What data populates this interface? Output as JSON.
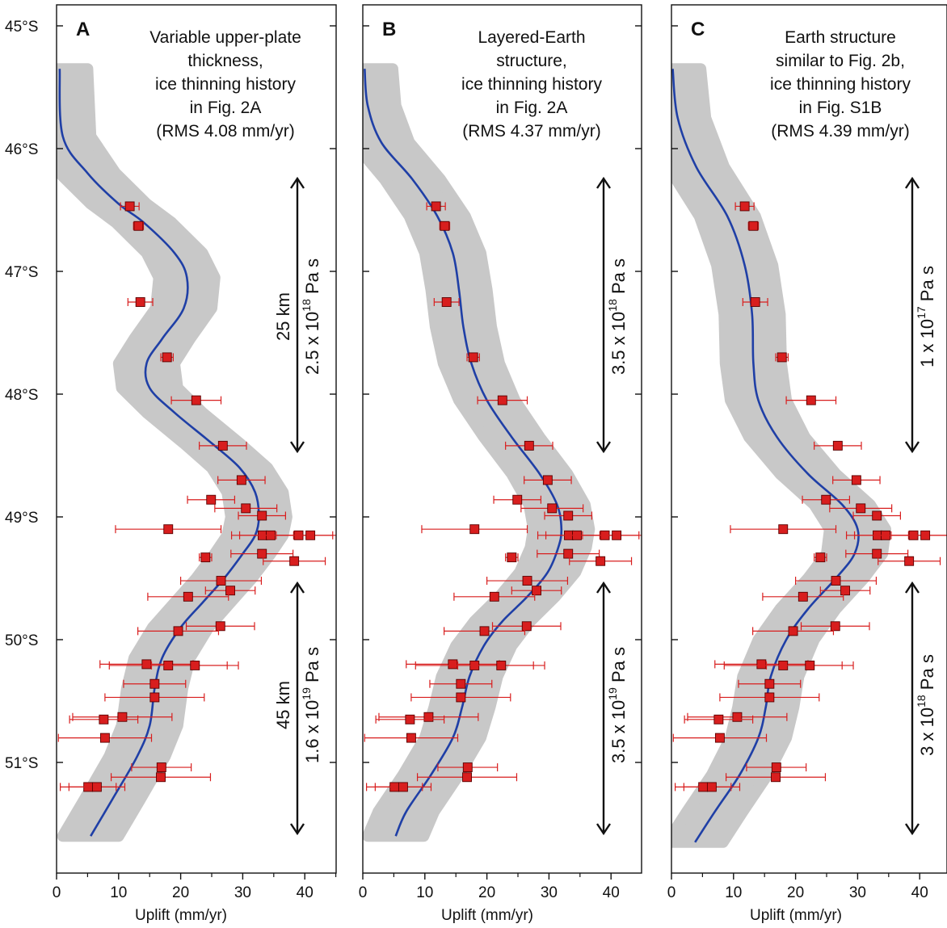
{
  "chart_data": [
    {
      "type": "scatter",
      "panel_label": "A",
      "annotation": [
        "Variable upper-plate",
        "thickness,",
        "ice thinning history",
        "in Fig. 2A",
        "(RMS 4.08 mm/yr)"
      ],
      "xlabel": "Uplift (mm/yr)",
      "ylabel": "",
      "xlim": [
        0,
        45
      ],
      "ylim": [
        -45,
        -51.9
      ],
      "x_ticks": [
        0,
        10,
        20,
        30,
        40
      ],
      "y_ticks": [
        {
          "v": -45,
          "label": "45°S"
        },
        {
          "v": -46,
          "label": "46°S"
        },
        {
          "v": -47,
          "label": "47°S"
        },
        {
          "v": -48,
          "label": "48°S"
        },
        {
          "v": -49,
          "label": "49°S"
        },
        {
          "v": -50,
          "label": "50°S"
        },
        {
          "v": -51,
          "label": "51°S"
        }
      ],
      "model_curve": [
        [
          0.5,
          -45.35
        ],
        [
          1,
          -45.9
        ],
        [
          5,
          -46.2
        ],
        [
          10,
          -46.45
        ],
        [
          14,
          -46.6
        ],
        [
          19,
          -46.85
        ],
        [
          21,
          -47.05
        ],
        [
          20.5,
          -47.3
        ],
        [
          17,
          -47.55
        ],
        [
          14.5,
          -47.75
        ],
        [
          15,
          -47.95
        ],
        [
          19,
          -48.15
        ],
        [
          25,
          -48.4
        ],
        [
          29.5,
          -48.6
        ],
        [
          32,
          -48.8
        ],
        [
          32.6,
          -49.0
        ],
        [
          32,
          -49.15
        ],
        [
          30,
          -49.3
        ],
        [
          27,
          -49.5
        ],
        [
          23.5,
          -49.7
        ],
        [
          20,
          -49.9
        ],
        [
          17,
          -50.15
        ],
        [
          15.8,
          -50.4
        ],
        [
          15,
          -50.7
        ],
        [
          13,
          -50.95
        ],
        [
          9,
          -51.3
        ],
        [
          5.5,
          -51.6
        ]
      ],
      "points": [
        {
          "y": -46.47,
          "x": 11.8,
          "xerr": 1.5
        },
        {
          "y": -46.63,
          "x": 13.2,
          "xerr": 0.8
        },
        {
          "y": -47.25,
          "x": 13.5,
          "xerr": 2.0
        },
        {
          "y": -47.7,
          "x": 17.8,
          "xerr": 1.0
        },
        {
          "y": -48.05,
          "x": 22.5,
          "xerr": 4.0
        },
        {
          "y": -48.42,
          "x": 26.8,
          "xerr": 3.8
        },
        {
          "y": -48.7,
          "x": 29.8,
          "xerr": 3.8
        },
        {
          "y": -48.86,
          "x": 24.9,
          "xerr": 3.8
        },
        {
          "y": -48.93,
          "x": 30.5,
          "xerr": 5.0
        },
        {
          "y": -48.99,
          "x": 33.1,
          "xerr": 3.8
        },
        {
          "y": -49.1,
          "x": 18.0,
          "xerr": 8.5
        },
        {
          "y": -49.15,
          "x": 33.2,
          "xerr": 5.0
        },
        {
          "y": -49.15,
          "x": 34.5,
          "xerr": 5.0
        },
        {
          "y": -49.15,
          "x": 39.0,
          "xerr": 5.5
        },
        {
          "y": -49.15,
          "x": 40.9,
          "xerr": 5.5
        },
        {
          "y": -49.3,
          "x": 33.1,
          "xerr": 5.0
        },
        {
          "y": -49.33,
          "x": 24.0,
          "xerr": 1.0
        },
        {
          "y": -49.36,
          "x": 38.3,
          "xerr": 5.0
        },
        {
          "y": -49.52,
          "x": 26.5,
          "xerr": 6.5
        },
        {
          "y": -49.6,
          "x": 28.0,
          "xerr": 4.0
        },
        {
          "y": -49.65,
          "x": 21.2,
          "xerr": 6.5
        },
        {
          "y": -49.89,
          "x": 26.4,
          "xerr": 5.5
        },
        {
          "y": -49.93,
          "x": 19.6,
          "xerr": 6.5
        },
        {
          "y": -50.2,
          "x": 14.5,
          "xerr": 7.5
        },
        {
          "y": -50.21,
          "x": 18.0,
          "xerr": 9.5
        },
        {
          "y": -50.21,
          "x": 22.3,
          "xerr": 7.0
        },
        {
          "y": -50.36,
          "x": 15.8,
          "xerr": 5.0
        },
        {
          "y": -50.47,
          "x": 15.8,
          "xerr": 8.0
        },
        {
          "y": -50.63,
          "x": 10.6,
          "xerr": 8.0
        },
        {
          "y": -50.65,
          "x": 7.6,
          "xerr": 5.5
        },
        {
          "y": -50.8,
          "x": 7.8,
          "xerr": 7.5
        },
        {
          "y": -51.04,
          "x": 16.9,
          "xerr": 4.8
        },
        {
          "y": -51.12,
          "x": 16.8,
          "xerr": 8.0
        },
        {
          "y": -51.2,
          "x": 5.1,
          "xerr": 4.5
        },
        {
          "y": -51.2,
          "x": 6.5,
          "xerr": 4.5
        }
      ],
      "viscosity_upper": {
        "thickness": "25 km",
        "coef": "2.5 x 10",
        "exp": "18",
        "unit": " Pa s"
      },
      "viscosity_lower": {
        "thickness": "45 km",
        "coef": "1.6 x 10",
        "exp": "19",
        "unit": " Pa s"
      }
    },
    {
      "type": "scatter",
      "panel_label": "B",
      "annotation": [
        "Layered-Earth",
        "structure,",
        "ice thinning history",
        "in Fig. 2A",
        "(RMS 4.37 mm/yr)"
      ],
      "xlabel": "Uplift (mm/yr)",
      "ylabel": "",
      "xlim": [
        0,
        45
      ],
      "ylim": [
        -45,
        -51.9
      ],
      "x_ticks": [
        0,
        10,
        20,
        30,
        40
      ],
      "y_ticks": [],
      "model_curve": [
        [
          0.3,
          -45.35
        ],
        [
          0.8,
          -45.65
        ],
        [
          3,
          -45.95
        ],
        [
          8,
          -46.25
        ],
        [
          12,
          -46.55
        ],
        [
          14.5,
          -46.85
        ],
        [
          15.5,
          -47.15
        ],
        [
          16.2,
          -47.45
        ],
        [
          17.5,
          -47.75
        ],
        [
          20,
          -48.05
        ],
        [
          24,
          -48.35
        ],
        [
          28.5,
          -48.65
        ],
        [
          31.3,
          -48.9
        ],
        [
          32,
          -49.1
        ],
        [
          31.5,
          -49.25
        ],
        [
          29.8,
          -49.45
        ],
        [
          26.5,
          -49.65
        ],
        [
          22.5,
          -49.85
        ],
        [
          19.5,
          -50.05
        ],
        [
          17.2,
          -50.3
        ],
        [
          16,
          -50.55
        ],
        [
          14.5,
          -50.8
        ],
        [
          11,
          -51.1
        ],
        [
          7,
          -51.4
        ],
        [
          5.3,
          -51.6
        ]
      ],
      "points": [
        {
          "y": -46.47,
          "x": 11.8,
          "xerr": 1.5
        },
        {
          "y": -46.63,
          "x": 13.2,
          "xerr": 0.8
        },
        {
          "y": -47.25,
          "x": 13.5,
          "xerr": 2.0
        },
        {
          "y": -47.7,
          "x": 17.8,
          "xerr": 1.0
        },
        {
          "y": -48.05,
          "x": 22.5,
          "xerr": 4.0
        },
        {
          "y": -48.42,
          "x": 26.8,
          "xerr": 3.8
        },
        {
          "y": -48.7,
          "x": 29.8,
          "xerr": 3.8
        },
        {
          "y": -48.86,
          "x": 24.9,
          "xerr": 3.8
        },
        {
          "y": -48.93,
          "x": 30.5,
          "xerr": 5.0
        },
        {
          "y": -48.99,
          "x": 33.1,
          "xerr": 3.8
        },
        {
          "y": -49.1,
          "x": 18.0,
          "xerr": 8.5
        },
        {
          "y": -49.15,
          "x": 33.2,
          "xerr": 5.0
        },
        {
          "y": -49.15,
          "x": 34.5,
          "xerr": 5.0
        },
        {
          "y": -49.15,
          "x": 39.0,
          "xerr": 5.5
        },
        {
          "y": -49.15,
          "x": 40.9,
          "xerr": 5.5
        },
        {
          "y": -49.3,
          "x": 33.1,
          "xerr": 5.0
        },
        {
          "y": -49.33,
          "x": 24.0,
          "xerr": 1.0
        },
        {
          "y": -49.36,
          "x": 38.3,
          "xerr": 5.0
        },
        {
          "y": -49.52,
          "x": 26.5,
          "xerr": 6.5
        },
        {
          "y": -49.6,
          "x": 28.0,
          "xerr": 4.0
        },
        {
          "y": -49.65,
          "x": 21.2,
          "xerr": 6.5
        },
        {
          "y": -49.89,
          "x": 26.4,
          "xerr": 5.5
        },
        {
          "y": -49.93,
          "x": 19.6,
          "xerr": 6.5
        },
        {
          "y": -50.2,
          "x": 14.5,
          "xerr": 7.5
        },
        {
          "y": -50.21,
          "x": 18.0,
          "xerr": 9.5
        },
        {
          "y": -50.21,
          "x": 22.3,
          "xerr": 7.0
        },
        {
          "y": -50.36,
          "x": 15.8,
          "xerr": 5.0
        },
        {
          "y": -50.47,
          "x": 15.8,
          "xerr": 8.0
        },
        {
          "y": -50.63,
          "x": 10.6,
          "xerr": 8.0
        },
        {
          "y": -50.65,
          "x": 7.6,
          "xerr": 5.5
        },
        {
          "y": -50.8,
          "x": 7.8,
          "xerr": 7.5
        },
        {
          "y": -51.04,
          "x": 16.9,
          "xerr": 4.8
        },
        {
          "y": -51.12,
          "x": 16.8,
          "xerr": 8.0
        },
        {
          "y": -51.2,
          "x": 5.1,
          "xerr": 4.5
        },
        {
          "y": -51.2,
          "x": 6.5,
          "xerr": 4.5
        }
      ],
      "viscosity_upper": {
        "thickness": "",
        "coef": "3.5 x 10",
        "exp": "18",
        "unit": " Pa s"
      },
      "viscosity_lower": {
        "thickness": "",
        "coef": "3.5 x 10",
        "exp": "19",
        "unit": " Pa s"
      }
    },
    {
      "type": "scatter",
      "panel_label": "C",
      "annotation": [
        "Earth structure",
        "similar to Fig. 2b,",
        "ice thinning history",
        "in Fig. S1B",
        "(RMS 4.39 mm/yr)"
      ],
      "xlabel": "Uplift (mm/yr)",
      "ylabel": "",
      "xlim": [
        0,
        45
      ],
      "ylim": [
        -45,
        -51.9
      ],
      "x_ticks": [
        0,
        10,
        20,
        30,
        40
      ],
      "y_ticks": [],
      "model_curve": [
        [
          0.2,
          -45.35
        ],
        [
          1,
          -45.75
        ],
        [
          4,
          -46.15
        ],
        [
          9,
          -46.55
        ],
        [
          11.8,
          -46.95
        ],
        [
          13,
          -47.35
        ],
        [
          13.2,
          -47.75
        ],
        [
          14,
          -48.05
        ],
        [
          17,
          -48.35
        ],
        [
          22,
          -48.65
        ],
        [
          27.5,
          -48.9
        ],
        [
          30,
          -49.1
        ],
        [
          29.5,
          -49.3
        ],
        [
          26.5,
          -49.5
        ],
        [
          22,
          -49.75
        ],
        [
          18.5,
          -50.0
        ],
        [
          16,
          -50.3
        ],
        [
          15.2,
          -50.55
        ],
        [
          14,
          -50.8
        ],
        [
          11,
          -51.1
        ],
        [
          7,
          -51.4
        ],
        [
          3.8,
          -51.65
        ]
      ],
      "points": [
        {
          "y": -46.47,
          "x": 11.8,
          "xerr": 1.5
        },
        {
          "y": -46.63,
          "x": 13.2,
          "xerr": 0.8
        },
        {
          "y": -47.25,
          "x": 13.5,
          "xerr": 2.0
        },
        {
          "y": -47.7,
          "x": 17.8,
          "xerr": 1.0
        },
        {
          "y": -48.05,
          "x": 22.5,
          "xerr": 4.0
        },
        {
          "y": -48.42,
          "x": 26.8,
          "xerr": 3.8
        },
        {
          "y": -48.7,
          "x": 29.8,
          "xerr": 3.8
        },
        {
          "y": -48.86,
          "x": 24.9,
          "xerr": 3.8
        },
        {
          "y": -48.93,
          "x": 30.5,
          "xerr": 5.0
        },
        {
          "y": -48.99,
          "x": 33.1,
          "xerr": 3.8
        },
        {
          "y": -49.1,
          "x": 18.0,
          "xerr": 8.5
        },
        {
          "y": -49.15,
          "x": 33.2,
          "xerr": 5.0
        },
        {
          "y": -49.15,
          "x": 34.5,
          "xerr": 5.0
        },
        {
          "y": -49.15,
          "x": 39.0,
          "xerr": 5.5
        },
        {
          "y": -49.15,
          "x": 40.9,
          "xerr": 5.5
        },
        {
          "y": -49.3,
          "x": 33.1,
          "xerr": 5.0
        },
        {
          "y": -49.33,
          "x": 24.0,
          "xerr": 1.0
        },
        {
          "y": -49.36,
          "x": 38.3,
          "xerr": 5.0
        },
        {
          "y": -49.52,
          "x": 26.5,
          "xerr": 6.5
        },
        {
          "y": -49.6,
          "x": 28.0,
          "xerr": 4.0
        },
        {
          "y": -49.65,
          "x": 21.2,
          "xerr": 6.5
        },
        {
          "y": -49.89,
          "x": 26.4,
          "xerr": 5.5
        },
        {
          "y": -49.93,
          "x": 19.6,
          "xerr": 6.5
        },
        {
          "y": -50.2,
          "x": 14.5,
          "xerr": 7.5
        },
        {
          "y": -50.21,
          "x": 18.0,
          "xerr": 9.5
        },
        {
          "y": -50.21,
          "x": 22.3,
          "xerr": 7.0
        },
        {
          "y": -50.36,
          "x": 15.8,
          "xerr": 5.0
        },
        {
          "y": -50.47,
          "x": 15.8,
          "xerr": 8.0
        },
        {
          "y": -50.63,
          "x": 10.6,
          "xerr": 8.0
        },
        {
          "y": -50.65,
          "x": 7.6,
          "xerr": 5.5
        },
        {
          "y": -50.8,
          "x": 7.8,
          "xerr": 7.5
        },
        {
          "y": -51.04,
          "x": 16.9,
          "xerr": 4.8
        },
        {
          "y": -51.12,
          "x": 16.8,
          "xerr": 8.0
        },
        {
          "y": -51.2,
          "x": 5.1,
          "xerr": 4.5
        },
        {
          "y": -51.2,
          "x": 6.5,
          "xerr": 4.5
        }
      ],
      "viscosity_upper": {
        "thickness": "",
        "coef": "1 x 10",
        "exp": "17",
        "unit": " Pa s"
      },
      "viscosity_lower": {
        "thickness": "",
        "coef": "3 x 10",
        "exp": "18",
        "unit": " Pa s"
      }
    }
  ],
  "colors": {
    "model_line": "#1f3fa6",
    "band": "#c8c8c8",
    "marker_fill": "#d81e1e",
    "marker_stroke": "#5a0000",
    "errorbar": "#d81e1e",
    "axis": "#111111"
  },
  "band_half_width_mm_yr": 4.5
}
